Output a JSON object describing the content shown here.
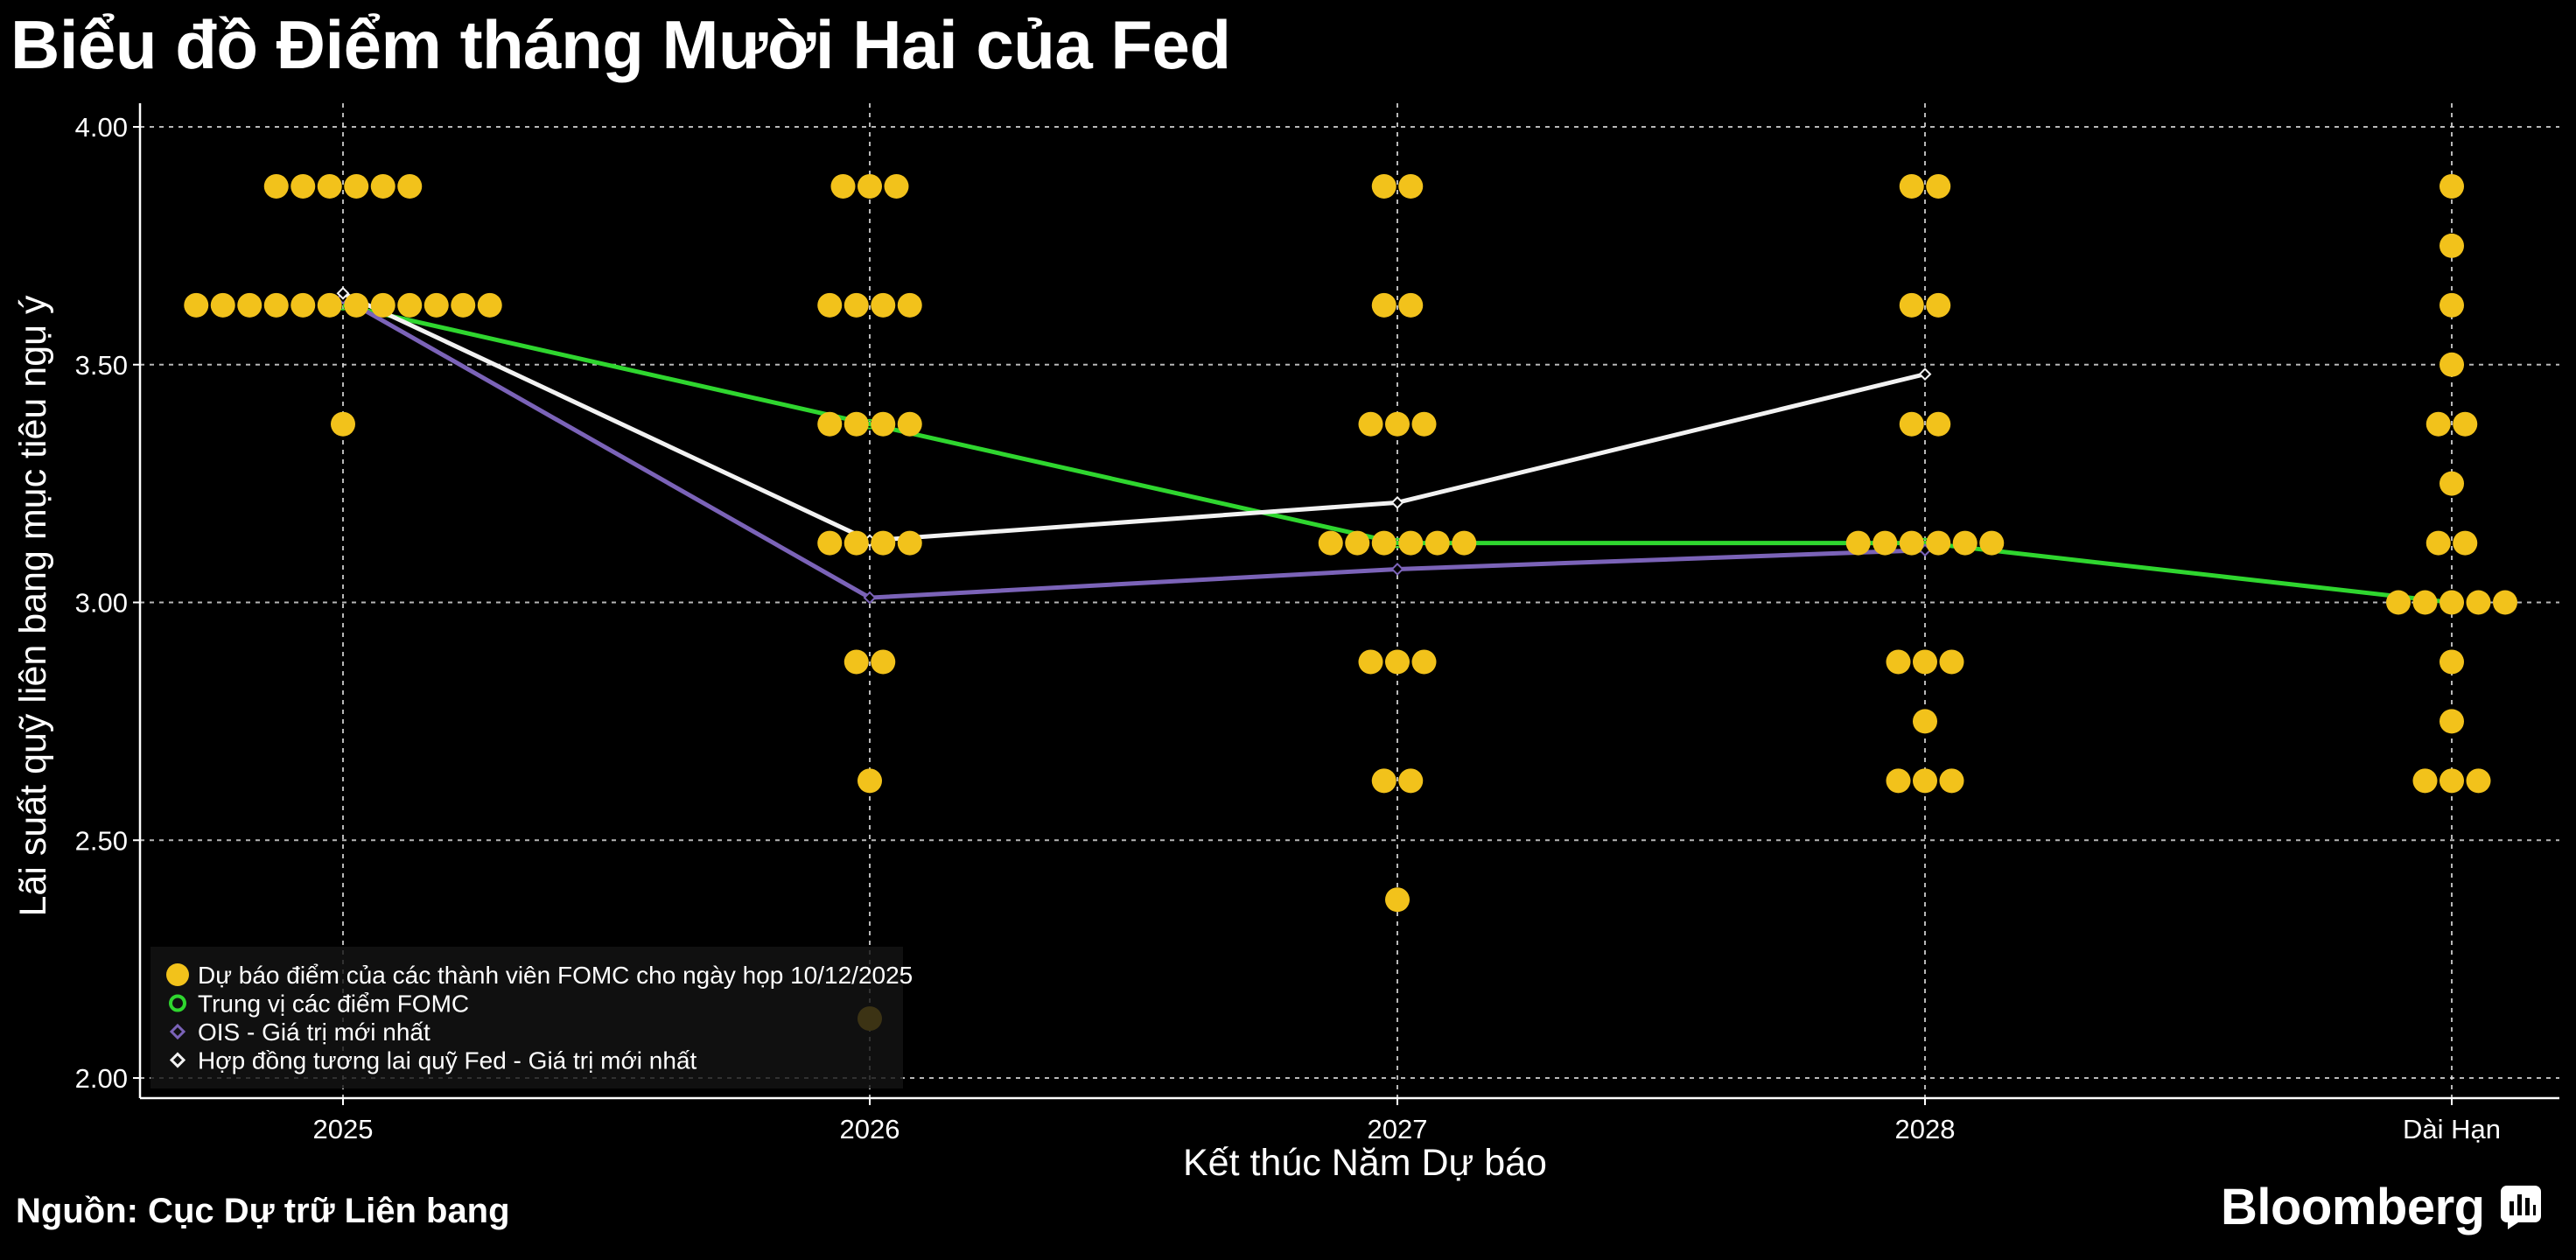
{
  "title": "Biểu đồ Điểm tháng Mười Hai của Fed",
  "source": "Nguồn: Cục Dự trữ Liên bang",
  "brand": "Bloomberg",
  "brand_icon": "bloomberg-terminal-icon",
  "colors": {
    "background": "#000000",
    "dots": "#f2c21b",
    "median": "#2fd62f",
    "ois": "#7b63b8",
    "futures": "#f2f2f2",
    "grid": "#d8d8d8",
    "axis": "#ffffff"
  },
  "chart_data": {
    "type": "scatter",
    "title": "Biểu đồ Điểm tháng Mười Hai của Fed",
    "xlabel": "Kết thúc Năm Dự báo",
    "ylabel": "Lãi suất quỹ liên bang mục tiêu ngụ ý",
    "categories": [
      "2025",
      "2026",
      "2027",
      "2028",
      "Dài Hạn"
    ],
    "ylim": [
      2.0,
      4.0
    ],
    "yticks": [
      "2.00",
      "2.50",
      "3.00",
      "3.50",
      "4.00"
    ],
    "grid": true,
    "legend_position": "bottom-left",
    "dots": [
      {
        "category": "2025",
        "values": [
          {
            "rate": 3.875,
            "count": 6
          },
          {
            "rate": 3.625,
            "count": 12
          },
          {
            "rate": 3.375,
            "count": 1
          }
        ]
      },
      {
        "category": "2026",
        "values": [
          {
            "rate": 3.875,
            "count": 3
          },
          {
            "rate": 3.625,
            "count": 4
          },
          {
            "rate": 3.375,
            "count": 4
          },
          {
            "rate": 3.125,
            "count": 4
          },
          {
            "rate": 2.875,
            "count": 2
          },
          {
            "rate": 2.625,
            "count": 1
          },
          {
            "rate": 2.125,
            "count": 1
          }
        ]
      },
      {
        "category": "2027",
        "values": [
          {
            "rate": 3.875,
            "count": 2
          },
          {
            "rate": 3.625,
            "count": 2
          },
          {
            "rate": 3.375,
            "count": 3
          },
          {
            "rate": 3.125,
            "count": 6
          },
          {
            "rate": 2.875,
            "count": 3
          },
          {
            "rate": 2.625,
            "count": 2
          },
          {
            "rate": 2.375,
            "count": 1
          }
        ]
      },
      {
        "category": "2028",
        "values": [
          {
            "rate": 3.875,
            "count": 2
          },
          {
            "rate": 3.625,
            "count": 2
          },
          {
            "rate": 3.375,
            "count": 2
          },
          {
            "rate": 3.125,
            "count": 6
          },
          {
            "rate": 2.875,
            "count": 3
          },
          {
            "rate": 2.75,
            "count": 1
          },
          {
            "rate": 2.625,
            "count": 3
          }
        ]
      },
      {
        "category": "Dài Hạn",
        "values": [
          {
            "rate": 3.875,
            "count": 1
          },
          {
            "rate": 3.75,
            "count": 1
          },
          {
            "rate": 3.625,
            "count": 1
          },
          {
            "rate": 3.5,
            "count": 1
          },
          {
            "rate": 3.375,
            "count": 2
          },
          {
            "rate": 3.25,
            "count": 1
          },
          {
            "rate": 3.125,
            "count": 2
          },
          {
            "rate": 3.0,
            "count": 5
          },
          {
            "rate": 2.875,
            "count": 1
          },
          {
            "rate": 2.75,
            "count": 1
          },
          {
            "rate": 2.625,
            "count": 3
          }
        ]
      }
    ],
    "series": [
      {
        "name": "Trung vị các điểm FOMC",
        "type": "line",
        "color_key": "median",
        "values": [
          3.625,
          3.375,
          3.125,
          3.125,
          3.0
        ]
      },
      {
        "name": "OIS - Giá trị mới nhất",
        "type": "line",
        "color_key": "ois",
        "values": [
          3.64,
          3.01,
          3.07,
          3.11,
          null
        ]
      },
      {
        "name": "Hợp đồng tương lai quỹ Fed - Giá trị mới nhất",
        "type": "line",
        "color_key": "futures",
        "values": [
          3.65,
          3.13,
          3.21,
          3.48,
          null
        ]
      }
    ],
    "legend": [
      {
        "label": "Dự báo điểm của các thành viên FOMC cho ngày họp 10/12/2025",
        "marker": "filled-circle",
        "color_key": "dots"
      },
      {
        "label": "Trung vị các điểm FOMC",
        "marker": "hollow-circle",
        "color_key": "median"
      },
      {
        "label": "OIS - Giá trị mới nhất",
        "marker": "diamond",
        "color_key": "ois"
      },
      {
        "label": "Hợp đồng tương lai quỹ Fed - Giá trị mới nhất",
        "marker": "diamond",
        "color_key": "futures"
      }
    ]
  }
}
